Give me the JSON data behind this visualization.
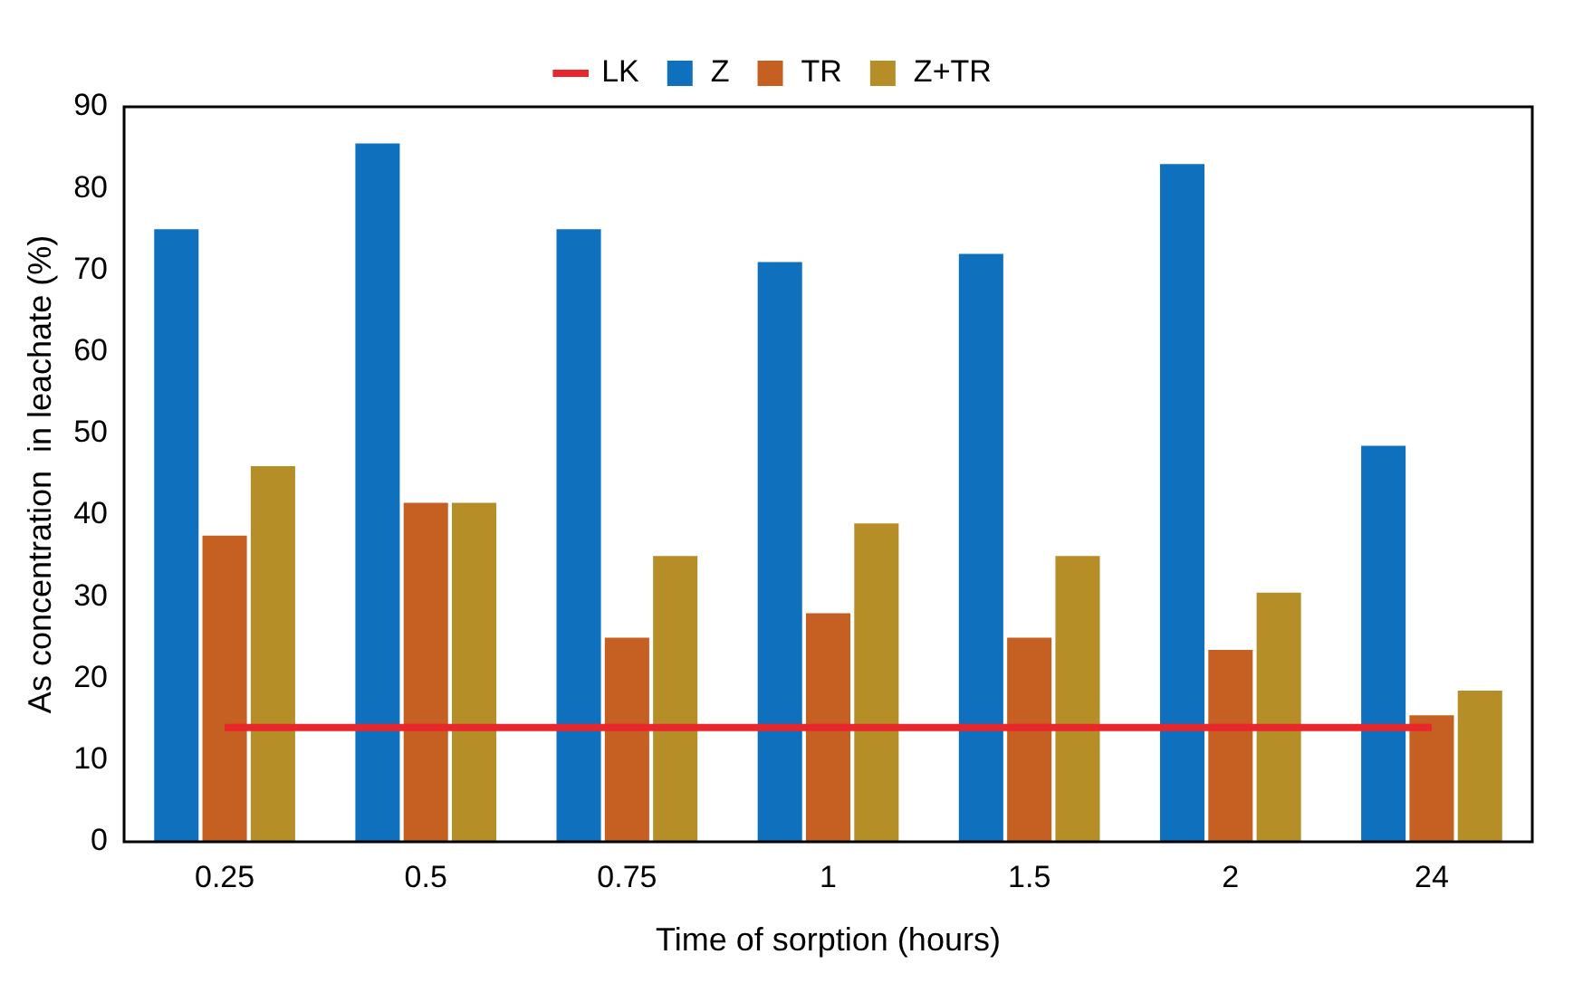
{
  "chart_data": {
    "type": "bar",
    "xlabel": "Time of sorption (hours)",
    "ylabel": "As concentration  in leachate (%)",
    "categories": [
      "0.25",
      "0.5",
      "0.75",
      "1",
      "1.5",
      "2",
      "24"
    ],
    "series": [
      {
        "name": "Z",
        "color": "#0f70be",
        "values": [
          75,
          85.5,
          75,
          71,
          72,
          83,
          48.5
        ]
      },
      {
        "name": "TR",
        "color": "#c55f22",
        "values": [
          37.5,
          41.5,
          25,
          28,
          25,
          23.5,
          15.5
        ]
      },
      {
        "name": "Z+TR",
        "color": "#b58e28",
        "values": [
          46,
          41.5,
          35,
          39,
          35,
          30.5,
          18.5
        ]
      },
      {
        "name": "LK",
        "type": "line",
        "color": "#e8262b",
        "values": [
          14,
          14,
          14,
          14,
          14,
          14,
          14
        ]
      }
    ],
    "ylim": [
      0,
      90
    ],
    "yticks": [
      0,
      10,
      20,
      30,
      40,
      50,
      60,
      70,
      80,
      90
    ],
    "grid": false,
    "legend": "top",
    "marker": "none"
  }
}
